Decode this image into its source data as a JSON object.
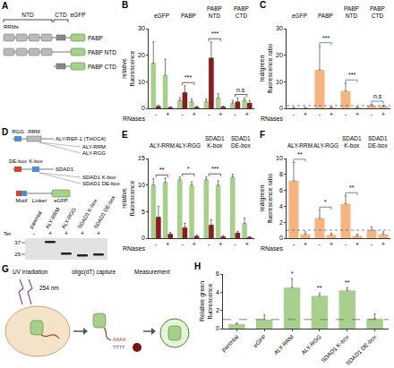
{
  "panels": {
    "A": {
      "ntd": "NTD",
      "ctd": "CTD",
      "rrms": "RRMs",
      "egfp": "eGFP",
      "constructs": [
        "PABP",
        "PABP NTD",
        "PABP CTD"
      ]
    },
    "D": {
      "aly": {
        "name": "ALY/REF-1 (THOC4)",
        "domains": [
          "RGG",
          "RRM"
        ],
        "constructs": [
          "ALY-RRM",
          "ALY-RGG"
        ]
      },
      "sdad1": {
        "name": "SDAD1",
        "domains": [
          "DE-box",
          "K-box"
        ],
        "constructs": [
          "SDAD1 K-box",
          "SDAD1 DE-box"
        ]
      },
      "construct_parts": [
        "Motif",
        "Linker",
        "eGFP"
      ],
      "blot": {
        "row_label": "Tet",
        "lanes": [
          "parental",
          "ALY-RRM",
          "ALY-RGG",
          "SDAD1 K-box",
          "SDAD1 DE-box"
        ],
        "tet": [
          "-",
          "+",
          "+",
          "+",
          "+"
        ],
        "markers": [
          37,
          25
        ]
      }
    },
    "G": {
      "steps": [
        "UV irradiation",
        "oligo(dT) capture",
        "Measurement"
      ],
      "wavelength": "254 nm",
      "polyA": "AAAA",
      "oligo": "TTTT"
    }
  },
  "chart_data": [
    {
      "panel": "B",
      "type": "bar",
      "ylabel": "relative fluorescence",
      "ylim": [
        0,
        30
      ],
      "yticks": [
        0,
        10,
        20,
        30
      ],
      "categories": [
        "eGFP",
        "PABP",
        "PABP NTD",
        "PABP CTD"
      ],
      "group_label": "RNases",
      "subgroups": [
        "-",
        "+"
      ],
      "series": [
        {
          "subgroup": "-",
          "color": "#a8d08d",
          "values": [
            17,
            3,
            2.5,
            2
          ],
          "errors": [
            8,
            1,
            1,
            1
          ]
        },
        {
          "subgroup": "-",
          "color": "#8e1b1b",
          "values": [
            0.8,
            6,
            19,
            2.5
          ],
          "errors": [
            0.4,
            2.5,
            6,
            1.5
          ]
        },
        {
          "subgroup": "+",
          "color": "#a8d08d",
          "values": [
            12.5,
            2.5,
            4,
            3
          ],
          "errors": [
            6,
            1,
            1.5,
            1
          ]
        },
        {
          "subgroup": "+",
          "color": "#8e1b1b",
          "values": [
            0.4,
            0.5,
            0.6,
            2
          ],
          "errors": [
            0.2,
            0.3,
            0.3,
            1
          ]
        }
      ],
      "significance": [
        {
          "category": "PABP",
          "label": "***"
        },
        {
          "category": "PABP NTD",
          "label": "***"
        },
        {
          "category": "PABP CTD",
          "label": "n.s"
        }
      ]
    },
    {
      "panel": "C",
      "type": "bar",
      "ylabel": "red/green fluorescence ratio",
      "ylim": [
        0,
        30
      ],
      "yticks": [
        0,
        10,
        20,
        30
      ],
      "categories": [
        "eGFP",
        "PABP",
        "PABP NTD",
        "PABP CTD"
      ],
      "group_label": "RNases",
      "subgroups": [
        "-",
        "+"
      ],
      "series": [
        {
          "subgroup": "-",
          "color": "#f6b47e",
          "values": [
            0.2,
            14.5,
            6.5,
            1
          ],
          "errors": [
            0.1,
            9,
            3,
            0.5
          ]
        },
        {
          "subgroup": "+",
          "color": "#f6b47e",
          "values": [
            0.2,
            0.3,
            0.3,
            0.8
          ],
          "errors": [
            0.1,
            0.2,
            0.2,
            0.4
          ]
        }
      ],
      "reference_line": 1,
      "significance": [
        {
          "category": "PABP",
          "label": "***"
        },
        {
          "category": "PABP NTD",
          "label": "***"
        },
        {
          "category": "PABP CTD",
          "label": "n.s"
        }
      ]
    },
    {
      "panel": "E",
      "type": "bar",
      "ylabel": "relative fluorescence",
      "ylim": [
        0,
        15
      ],
      "yticks": [
        0,
        5,
        10,
        15
      ],
      "categories": [
        "ALY-RRM",
        "ALY-RGG",
        "SDAD1 K-box",
        "SDAD1 DE-box"
      ],
      "group_label": "RNases",
      "subgroups": [
        "-",
        "+"
      ],
      "series": [
        {
          "subgroup": "-",
          "color": "#a8d08d",
          "values": [
            10,
            11,
            11,
            11.5
          ],
          "errors": [
            1.2,
            0.5,
            0.5,
            0.5
          ]
        },
        {
          "subgroup": "-",
          "color": "#8e1b1b",
          "values": [
            4,
            2,
            2.5,
            1
          ],
          "errors": [
            2,
            0.8,
            1,
            0.3
          ]
        },
        {
          "subgroup": "+",
          "color": "#a8d08d",
          "values": [
            10.5,
            10,
            10,
            2.8
          ],
          "errors": [
            0.8,
            0.6,
            0.8,
            1
          ]
        },
        {
          "subgroup": "+",
          "color": "#8e1b1b",
          "values": [
            0.8,
            0.4,
            0.3,
            0.2
          ],
          "errors": [
            0.3,
            0.2,
            0.2,
            0.1
          ]
        }
      ],
      "significance": [
        {
          "category": "ALY-RRM",
          "label": "**"
        },
        {
          "category": "ALY-RGG",
          "label": "*"
        },
        {
          "category": "SDAD1 K-box",
          "label": "***"
        }
      ]
    },
    {
      "panel": "F",
      "type": "bar",
      "ylabel": "red/green fluorescence ratio",
      "ylim": [
        0,
        10
      ],
      "yticks": [
        0,
        2,
        4,
        6,
        8,
        10
      ],
      "categories": [
        "ALY-RRM",
        "ALY-RGG",
        "SDAD1 K-box",
        "SDAD1 DE-box"
      ],
      "group_label": "RNases",
      "subgroups": [
        "-",
        "+"
      ],
      "series": [
        {
          "subgroup": "-",
          "color": "#f6b47e",
          "values": [
            7.2,
            2.5,
            4.3,
            1
          ],
          "errors": [
            2.3,
            1,
            1,
            0.4
          ]
        },
        {
          "subgroup": "+",
          "color": "#f6b47e",
          "values": [
            0.5,
            0.4,
            0.3,
            0.5
          ],
          "errors": [
            0.3,
            0.2,
            0.2,
            0.3
          ]
        }
      ],
      "reference_line": 1,
      "significance": [
        {
          "category": "ALY-RRM",
          "label": "**"
        },
        {
          "category": "ALY-RGG",
          "label": "*"
        },
        {
          "category": "SDAD1 K-box",
          "label": "**"
        }
      ]
    },
    {
      "panel": "H",
      "type": "bar",
      "ylabel": "Relative green fluorescence",
      "ylim": [
        0,
        6
      ],
      "yticks": [
        0,
        2,
        4,
        6
      ],
      "categories": [
        "parental",
        "eGFP",
        "ALY-RRM",
        "ALY-RGG",
        "SDAD1 K-box",
        "SDAD1 DE-box"
      ],
      "color": "#a8d08d",
      "values": [
        0.5,
        1,
        4.5,
        3.6,
        4.2,
        1.1
      ],
      "errors": [
        0.1,
        0.5,
        1,
        0.3,
        0.3,
        0.5
      ],
      "reference_line": 1,
      "significance": [
        {
          "category": "ALY-RRM",
          "label": "*"
        },
        {
          "category": "ALY-RGG",
          "label": "**"
        },
        {
          "category": "SDAD1 K-box",
          "label": "**"
        }
      ]
    }
  ]
}
